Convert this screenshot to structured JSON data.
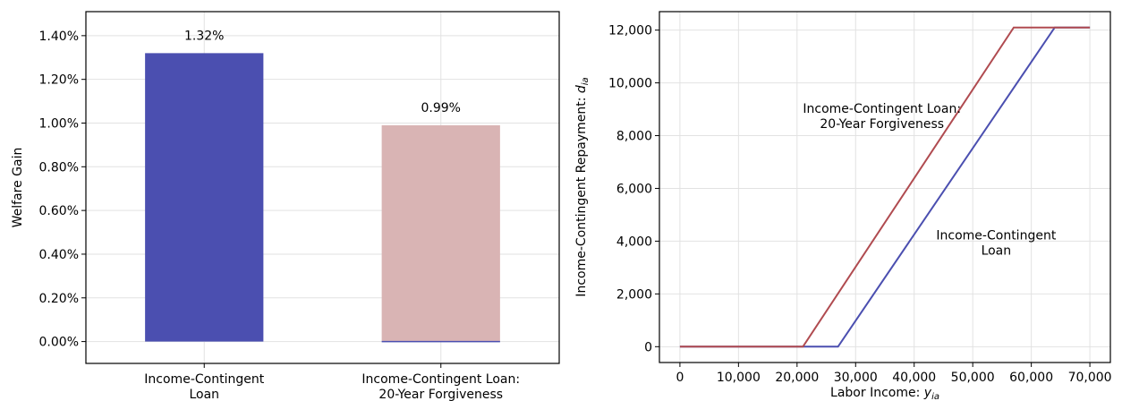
{
  "colors": {
    "blue": "#4b4fb0",
    "pink": "#d9b4b4",
    "dark_blue": "#00008b",
    "dark_red": "#8b0000",
    "red_line": "#b04b50",
    "blue_line": "#4b4fb0"
  },
  "chart_data": [
    {
      "type": "bar",
      "ylabel": "Welfare Gain",
      "xlabel": "",
      "categories": [
        [
          "Income-Contingent",
          "Loan"
        ],
        [
          "Income-Contingent Loan:",
          "20-Year Forgiveness"
        ]
      ],
      "values": [
        1.32,
        0.99
      ],
      "value_labels": [
        "1.32%",
        "0.99%"
      ],
      "bar_colors": [
        "#4b4fb0",
        "#d9b4b4"
      ],
      "label_colors": [
        "#00008b",
        "#8b0000"
      ],
      "ylim": [
        -0.1,
        1.51
      ],
      "yticks": [
        0.0,
        0.2,
        0.4,
        0.6,
        0.8,
        1.0,
        1.2,
        1.4
      ],
      "ytick_labels": [
        "0.00%",
        "0.20%",
        "0.40%",
        "0.60%",
        "0.80%",
        "1.00%",
        "1.20%",
        "1.40%"
      ],
      "grid": true
    },
    {
      "type": "line",
      "xlabel": "Labor Income: ",
      "xlabel_sym": "y",
      "xlabel_sub": "ia",
      "ylabel": "Income-Contingent Repayment: ",
      "ylabel_sym": "d",
      "ylabel_sub": "ia",
      "xlim": [
        -3500,
        73500
      ],
      "ylim": [
        -600,
        12700
      ],
      "xticks": [
        0,
        10000,
        20000,
        30000,
        40000,
        50000,
        60000,
        70000
      ],
      "xtick_labels": [
        "0",
        "10,000",
        "20,000",
        "30,000",
        "40,000",
        "50,000",
        "60,000",
        "70,000"
      ],
      "yticks": [
        0,
        2000,
        4000,
        6000,
        8000,
        10000,
        12000
      ],
      "ytick_labels": [
        "0",
        "2,000",
        "4,000",
        "6,000",
        "8,000",
        "10,000",
        "12,000"
      ],
      "grid": true,
      "series": [
        {
          "color": "#4b4fb0",
          "x": [
            0,
            27000,
            64000,
            70000
          ],
          "y": [
            0,
            0,
            12100,
            12100
          ]
        },
        {
          "color": "#b04b50",
          "x": [
            0,
            21000,
            57000,
            70000
          ],
          "y": [
            0,
            0,
            12100,
            12100
          ]
        }
      ],
      "annotations": [
        {
          "lines": [
            "Income-Contingent Loan:",
            "20-Year Forgiveness"
          ],
          "x": 34500,
          "y": 8600,
          "color": "#8b0000"
        },
        {
          "lines": [
            "Income-Contingent",
            "Loan"
          ],
          "x": 54000,
          "y": 3800,
          "color": "#00008b"
        }
      ]
    }
  ]
}
